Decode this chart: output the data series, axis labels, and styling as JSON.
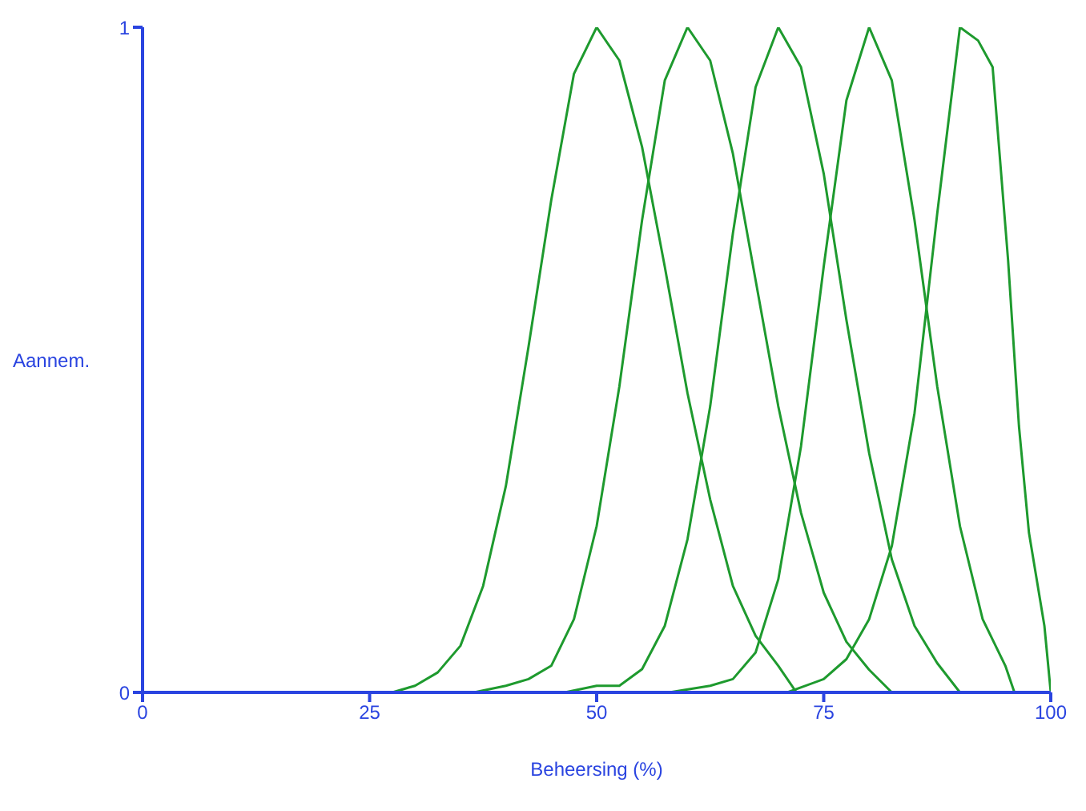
{
  "chart_data": {
    "type": "line",
    "xlabel": "Beheersing (%)",
    "ylabel": "Aannem.",
    "xlim": [
      0,
      100
    ],
    "xticks": [
      0,
      25,
      50,
      75,
      100
    ],
    "ylim": [
      0,
      1
    ],
    "yticks": [
      0,
      1
    ],
    "grid": false,
    "marker": "none",
    "line_style": "solid",
    "series": [
      {
        "color": "#1e9a2e",
        "x": [
          27.5,
          30,
          32.5,
          35,
          37.5,
          40,
          42.5,
          45,
          47.5,
          50,
          52.5,
          55,
          57.5,
          60,
          62.5,
          65,
          67.5,
          70,
          72
        ],
        "values": [
          0,
          0.01,
          0.03,
          0.07,
          0.16,
          0.31,
          0.52,
          0.74,
          0.93,
          1,
          0.95,
          0.82,
          0.64,
          0.45,
          0.29,
          0.16,
          0.085,
          0.04,
          0
        ]
      },
      {
        "color": "#1e9a2e",
        "x": [
          36.5,
          40,
          42.5,
          45,
          47.5,
          50,
          52.5,
          55,
          57.5,
          60,
          62.5,
          65,
          67.5,
          70,
          72.5,
          75,
          77.5,
          80,
          82.5
        ],
        "values": [
          0,
          0.01,
          0.02,
          0.04,
          0.11,
          0.25,
          0.46,
          0.71,
          0.92,
          1,
          0.95,
          0.81,
          0.62,
          0.43,
          0.27,
          0.15,
          0.076,
          0.034,
          0
        ]
      },
      {
        "color": "#1e9a2e",
        "x": [
          46.5,
          50,
          52.5,
          55,
          57.5,
          60,
          62.5,
          65,
          67.5,
          70,
          72.5,
          75,
          77.5,
          80,
          82.5,
          85,
          87.5,
          90
        ],
        "values": [
          0,
          0.01,
          0.01,
          0.035,
          0.1,
          0.23,
          0.43,
          0.69,
          0.91,
          1,
          0.94,
          0.78,
          0.56,
          0.36,
          0.2,
          0.1,
          0.044,
          0
        ]
      },
      {
        "color": "#1e9a2e",
        "x": [
          58,
          62.5,
          65,
          67.5,
          70,
          72.5,
          75,
          77.5,
          80,
          82.5,
          85,
          87.5,
          90,
          92.5,
          95,
          96
        ],
        "values": [
          0,
          0.01,
          0.02,
          0.06,
          0.17,
          0.37,
          0.64,
          0.89,
          1,
          0.92,
          0.71,
          0.46,
          0.25,
          0.11,
          0.04,
          0
        ]
      },
      {
        "color": "#1e9a2e",
        "x": [
          71,
          75,
          77.5,
          80,
          82.5,
          85,
          87.5,
          90,
          92,
          93.6,
          95.3,
          96.5,
          97.6,
          99.3,
          100
        ],
        "values": [
          0,
          0.02,
          0.05,
          0.11,
          0.22,
          0.42,
          0.72,
          1,
          0.98,
          0.94,
          0.65,
          0.4,
          0.24,
          0.1,
          0
        ]
      }
    ]
  }
}
